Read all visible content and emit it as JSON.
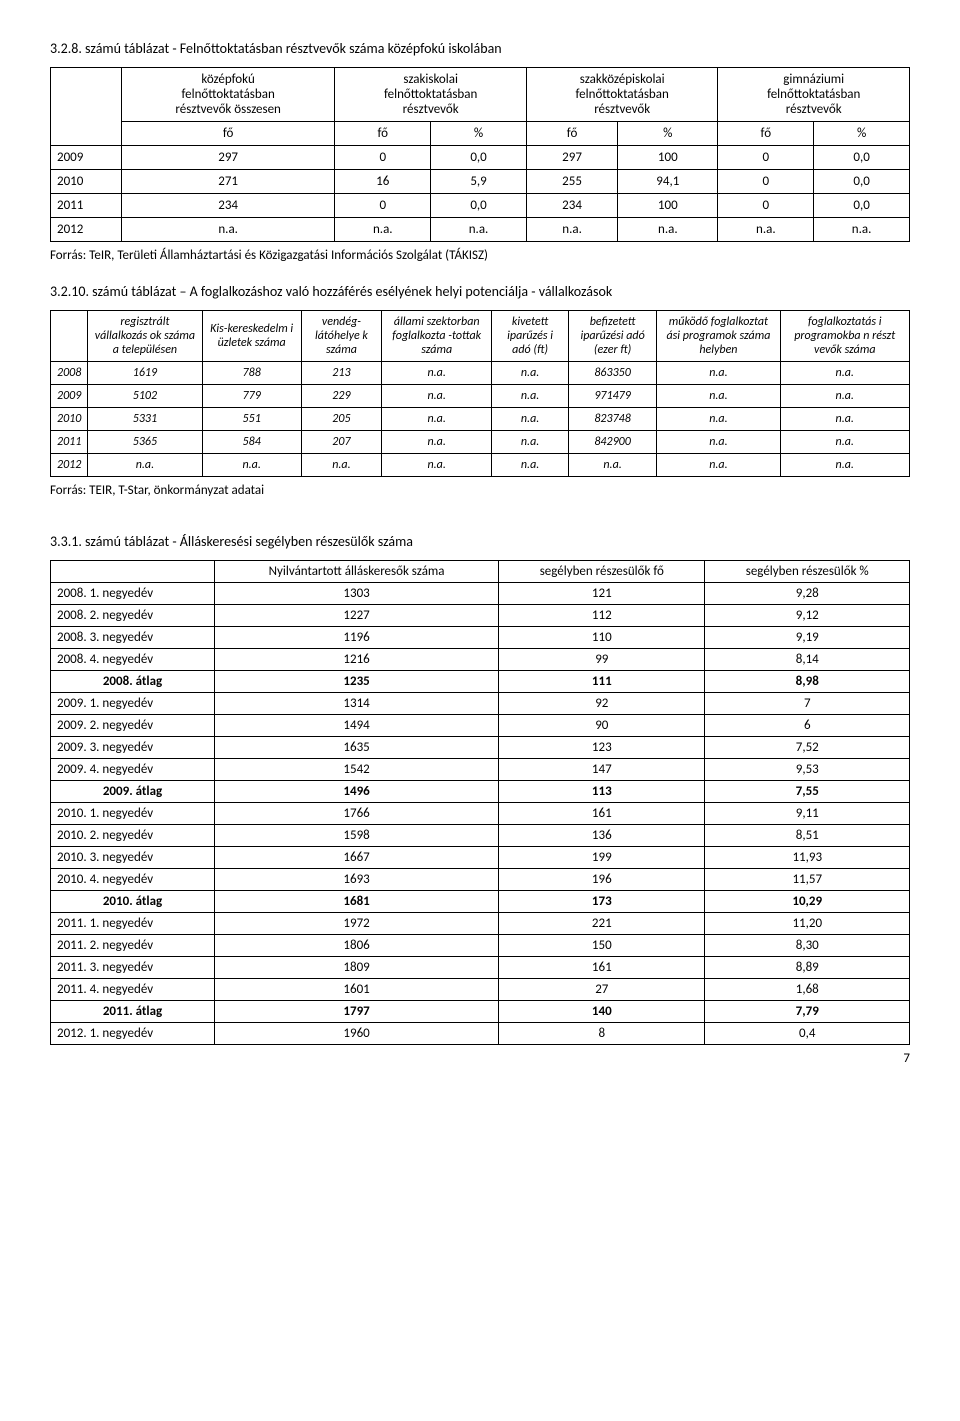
{
  "page_number": "7",
  "section1": {
    "title": "3.2.8. számú táblázat - Felnőttoktatásban résztvevők száma középfokú iskolában",
    "headers": {
      "col1_a": "középfokú",
      "col1_b": "felnőttoktatásban",
      "col1_c": "résztvevők összesen",
      "col2_a": "szakiskolai",
      "col2_b": "felnőttoktatásban",
      "col2_c": "résztvevők",
      "col3_a": "szakközépiskolai",
      "col3_b": "felnőttoktatásban",
      "col3_c": "résztvevők",
      "col4_a": "gimnáziumi",
      "col4_b": "felnőttoktatásban",
      "col4_c": "résztvevők",
      "sub_fo": "fő",
      "sub_pct": "%"
    },
    "rows": [
      {
        "year": "2009",
        "c1": "297",
        "c2": "0",
        "c3": "0,0",
        "c4": "297",
        "c5": "100",
        "c6": "0",
        "c7": "0,0"
      },
      {
        "year": "2010",
        "c1": "271",
        "c2": "16",
        "c3": "5,9",
        "c4": "255",
        "c5": "94,1",
        "c6": "0",
        "c7": "0,0"
      },
      {
        "year": "2011",
        "c1": "234",
        "c2": "0",
        "c3": "0,0",
        "c4": "234",
        "c5": "100",
        "c6": "0",
        "c7": "0,0"
      },
      {
        "year": "2012",
        "c1": "n.a.",
        "c2": "n.a.",
        "c3": "n.a.",
        "c4": "n.a.",
        "c5": "n.a.",
        "c6": "n.a.",
        "c7": "n.a."
      }
    ],
    "source": "Forrás: TeIR, Területi Államháztartási és Közigazgatási Információs Szolgálat (TÁKISZ)"
  },
  "section2": {
    "title": "3.2.10. számú táblázat – A foglalkozáshoz való hozzáférés esélyének helyi potenciálja - vállalkozások",
    "headers": {
      "h1": "regisztrált vállalkozás ok száma a településen",
      "h2": "Kis-kereskedelm i üzletek száma",
      "h3": "vendég-látóhelye k száma",
      "h4": "állami szektorban foglalkozta -tottak száma",
      "h5": "kivetett iparűzés i adó (ft)",
      "h6": "befizetett iparűzési adó (ezer ft)",
      "h7": "működő foglalkoztat ási programok száma helyben",
      "h8": "foglalkoztatás i programokba n részt vevők száma"
    },
    "rows": [
      {
        "year": "2008",
        "c1": "1619",
        "c2": "788",
        "c3": "213",
        "c4": "n.a.",
        "c5": "n.a.",
        "c6": "863350",
        "c7": "n.a.",
        "c8": "n.a."
      },
      {
        "year": "2009",
        "c1": "5102",
        "c2": "779",
        "c3": "229",
        "c4": "n.a.",
        "c5": "n.a.",
        "c6": "971479",
        "c7": "n.a.",
        "c8": "n.a."
      },
      {
        "year": "2010",
        "c1": "5331",
        "c2": "551",
        "c3": "205",
        "c4": "n.a.",
        "c5": "n.a.",
        "c6": "823748",
        "c7": "n.a.",
        "c8": "n.a."
      },
      {
        "year": "2011",
        "c1": "5365",
        "c2": "584",
        "c3": "207",
        "c4": "n.a.",
        "c5": "n.a.",
        "c6": "842900",
        "c7": "n.a.",
        "c8": "n.a."
      },
      {
        "year": "2012",
        "c1": "n.a.",
        "c2": "n.a.",
        "c3": "n.a.",
        "c4": "n.a.",
        "c5": "n.a.",
        "c6": "n.a.",
        "c7": "n.a.",
        "c8": "n.a."
      }
    ],
    "source": "Forrás: TEIR, T-Star, önkormányzat adatai"
  },
  "section3": {
    "title": "3.3.1. számú táblázat - Álláskeresési segélyben részesülők száma",
    "headers": {
      "h1": "Nyilvántartott álláskeresők száma",
      "h2": "segélyben részesülők fő",
      "h3": "segélyben részesülők %"
    },
    "rows": [
      {
        "label": "2008. 1. negyedév",
        "c1": "1303",
        "c2": "121",
        "c3": "9,28",
        "bold": false
      },
      {
        "label": "2008. 2. negyedév",
        "c1": "1227",
        "c2": "112",
        "c3": "9,12",
        "bold": false
      },
      {
        "label": "2008. 3. negyedév",
        "c1": "1196",
        "c2": "110",
        "c3": "9,19",
        "bold": false
      },
      {
        "label": "2008. 4. negyedév",
        "c1": "1216",
        "c2": "99",
        "c3": "8,14",
        "bold": false
      },
      {
        "label": "2008. átlag",
        "c1": "1235",
        "c2": "111",
        "c3": "8,98",
        "bold": true
      },
      {
        "label": "2009. 1. negyedév",
        "c1": "1314",
        "c2": "92",
        "c3": "7",
        "bold": false
      },
      {
        "label": "2009. 2. negyedév",
        "c1": "1494",
        "c2": "90",
        "c3": "6",
        "bold": false
      },
      {
        "label": "2009. 3. negyedév",
        "c1": "1635",
        "c2": "123",
        "c3": "7,52",
        "bold": false
      },
      {
        "label": "2009. 4. negyedév",
        "c1": "1542",
        "c2": "147",
        "c3": "9,53",
        "bold": false
      },
      {
        "label": "2009. átlag",
        "c1": "1496",
        "c2": "113",
        "c3": "7,55",
        "bold": true
      },
      {
        "label": "2010. 1. negyedév",
        "c1": "1766",
        "c2": "161",
        "c3": "9,11",
        "bold": false
      },
      {
        "label": "2010. 2. negyedév",
        "c1": "1598",
        "c2": "136",
        "c3": "8,51",
        "bold": false
      },
      {
        "label": "2010. 3. negyedév",
        "c1": "1667",
        "c2": "199",
        "c3": "11,93",
        "bold": false
      },
      {
        "label": "2010. 4. negyedév",
        "c1": "1693",
        "c2": "196",
        "c3": "11,57",
        "bold": false
      },
      {
        "label": "2010. átlag",
        "c1": "1681",
        "c2": "173",
        "c3": "10,29",
        "bold": true
      },
      {
        "label": "2011. 1. negyedév",
        "c1": "1972",
        "c2": "221",
        "c3": "11,20",
        "bold": false
      },
      {
        "label": "2011. 2. negyedév",
        "c1": "1806",
        "c2": "150",
        "c3": "8,30",
        "bold": false
      },
      {
        "label": "2011. 3. negyedév",
        "c1": "1809",
        "c2": "161",
        "c3": "8,89",
        "bold": false
      },
      {
        "label": "2011. 4. negyedév",
        "c1": "1601",
        "c2": "27",
        "c3": "1,68",
        "bold": false
      },
      {
        "label": "2011. átlag",
        "c1": "1797",
        "c2": "140",
        "c3": "7,79",
        "bold": true
      },
      {
        "label": "2012. 1. negyedév",
        "c1": "1960",
        "c2": "8",
        "c3": "0,4",
        "bold": false
      }
    ]
  }
}
